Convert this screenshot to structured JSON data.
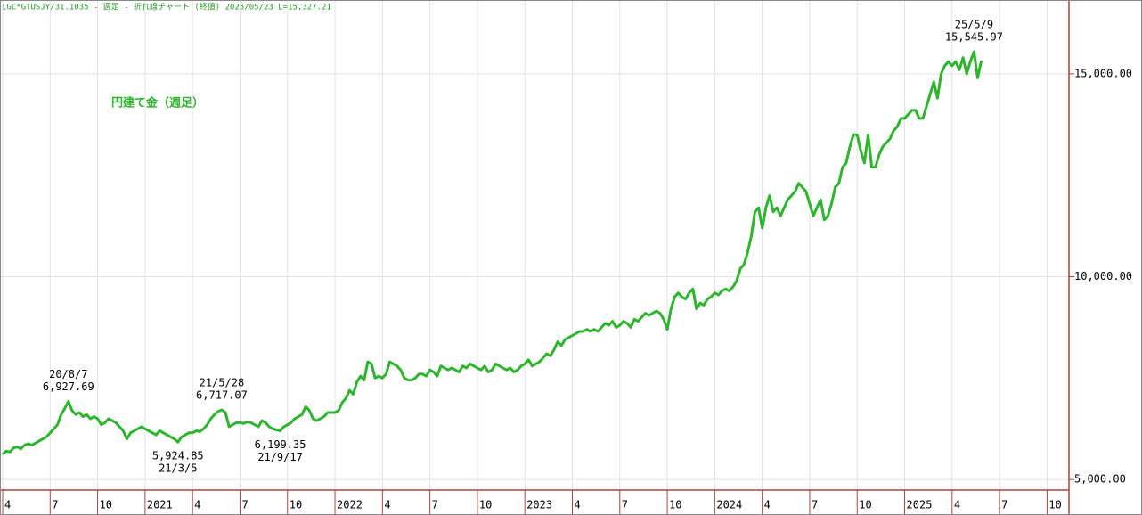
{
  "chart_data": {
    "type": "line",
    "header": "LGC*GTUSJY/31.1035 - 週足 - 折れ線チャート (終値)  2025/05/23 L=15,327.21",
    "title": "円建て金（週足）",
    "grid": true,
    "ylim": [
      4740,
      16820
    ],
    "yticks": [
      {
        "value": 5000,
        "label": "5,000.00"
      },
      {
        "value": 10000,
        "label": "10,000.00"
      },
      {
        "value": 15000,
        "label": "15,000.00"
      }
    ],
    "categories": [
      "4",
      null,
      null,
      null,
      null,
      null,
      null,
      null,
      null,
      null,
      null,
      null,
      null,
      "7",
      null,
      null,
      null,
      null,
      null,
      null,
      null,
      null,
      null,
      null,
      null,
      null,
      "10",
      null,
      null,
      null,
      null,
      null,
      null,
      null,
      null,
      null,
      null,
      null,
      null,
      "2021",
      null,
      null,
      null,
      null,
      null,
      null,
      null,
      null,
      null,
      null,
      null,
      null,
      "4",
      null,
      null,
      null,
      null,
      null,
      null,
      null,
      null,
      null,
      null,
      null,
      null,
      "7",
      null,
      null,
      null,
      null,
      null,
      null,
      null,
      null,
      null,
      null,
      null,
      null,
      "10",
      null,
      null,
      null,
      null,
      null,
      null,
      null,
      null,
      null,
      null,
      null,
      null,
      "2022",
      null,
      null,
      null,
      null,
      null,
      null,
      null,
      null,
      null,
      null,
      null,
      null,
      "4",
      null,
      null,
      null,
      null,
      null,
      null,
      null,
      null,
      null,
      null,
      null,
      null,
      "7",
      null,
      null,
      null,
      null,
      null,
      null,
      null,
      null,
      null,
      null,
      null,
      null,
      "10",
      null,
      null,
      null,
      null,
      null,
      null,
      null,
      null,
      null,
      null,
      null,
      null,
      "2023",
      null,
      null,
      null,
      null,
      null,
      null,
      null,
      null,
      null,
      null,
      null,
      null,
      "4",
      null,
      null,
      null,
      null,
      null,
      null,
      null,
      null,
      null,
      null,
      null,
      null,
      "7",
      null,
      null,
      null,
      null,
      null,
      null,
      null,
      null,
      null,
      null,
      null,
      null,
      "10",
      null,
      null,
      null,
      null,
      null,
      null,
      null,
      null,
      null,
      null,
      null,
      null,
      "2024",
      null,
      null,
      null,
      null,
      null,
      null,
      null,
      null,
      null,
      null,
      null,
      null,
      "4",
      null,
      null,
      null,
      null,
      null,
      null,
      null,
      null,
      null,
      null,
      null,
      null,
      "7",
      null,
      null,
      null,
      null,
      null,
      null,
      null,
      null,
      null,
      null,
      null,
      null,
      "10",
      null,
      null,
      null,
      null,
      null,
      null,
      null,
      null,
      null,
      null,
      null,
      null,
      "2025",
      null,
      null,
      null,
      null,
      null,
      null,
      null,
      null,
      null,
      null,
      null,
      null,
      "4",
      null,
      null,
      null,
      null,
      null,
      null,
      null,
      null,
      null,
      null,
      null,
      null,
      "7",
      null,
      null,
      null,
      null,
      null,
      null,
      null,
      null,
      null,
      null,
      null,
      null,
      "10",
      null,
      null,
      null,
      null,
      null
    ],
    "series": [
      {
        "name": "円建て金（週足）",
        "color": "#2db52d",
        "values": [
          5620,
          5700,
          5680,
          5780,
          5800,
          5760,
          5850,
          5880,
          5850,
          5900,
          5950,
          6000,
          6050,
          6150,
          6250,
          6350,
          6600,
          6750,
          6927.69,
          6700,
          6600,
          6650,
          6550,
          6600,
          6500,
          6550,
          6500,
          6350,
          6400,
          6500,
          6450,
          6400,
          6300,
          6200,
          6000,
          6150,
          6200,
          6250,
          6300,
          6250,
          6200,
          6150,
          6100,
          6200,
          6150,
          6100,
          6050,
          6000,
          5924.85,
          6050,
          6100,
          6150,
          6150,
          6200,
          6180,
          6250,
          6350,
          6500,
          6600,
          6680,
          6717.07,
          6650,
          6300,
          6350,
          6400,
          6400,
          6380,
          6420,
          6400,
          6350,
          6300,
          6450,
          6400,
          6300,
          6250,
          6220,
          6199.35,
          6300,
          6350,
          6400,
          6500,
          6550,
          6600,
          6800,
          6700,
          6500,
          6450,
          6500,
          6550,
          6650,
          6650,
          6650,
          6700,
          6900,
          7000,
          7200,
          7100,
          7400,
          7550,
          7450,
          7900,
          7850,
          7500,
          7550,
          7500,
          7600,
          7900,
          7850,
          7800,
          7700,
          7500,
          7450,
          7450,
          7500,
          7600,
          7600,
          7550,
          7700,
          7650,
          7550,
          7800,
          7750,
          7700,
          7750,
          7700,
          7650,
          7800,
          7750,
          7850,
          7800,
          7750,
          7700,
          7800,
          7650,
          7700,
          7850,
          7800,
          7750,
          7700,
          7750,
          7650,
          7700,
          7800,
          7850,
          7950,
          7800,
          7850,
          7900,
          8000,
          8100,
          8050,
          8200,
          8400,
          8300,
          8450,
          8500,
          8550,
          8600,
          8650,
          8650,
          8700,
          8650,
          8700,
          8650,
          8750,
          8850,
          8800,
          8900,
          8750,
          8800,
          8900,
          8850,
          8750,
          8950,
          8900,
          9000,
          9100,
          9050,
          9100,
          9150,
          9100,
          8950,
          8700,
          9200,
          9500,
          9600,
          9500,
          9450,
          9600,
          9700,
          9200,
          9350,
          9300,
          9450,
          9500,
          9600,
          9550,
          9650,
          9700,
          9650,
          9750,
          9900,
          10200,
          10300,
          10600,
          11000,
          11600,
          11700,
          11200,
          11700,
          12000,
          11600,
          11700,
          11500,
          11700,
          11900,
          12000,
          12100,
          12300,
          12200,
          12100,
          11800,
          11500,
          11700,
          11900,
          11400,
          11500,
          11800,
          12200,
          12300,
          12700,
          12800,
          13200,
          13500,
          13500,
          13100,
          12800,
          13500,
          12700,
          12700,
          13000,
          13200,
          13300,
          13400,
          13600,
          13700,
          13900,
          13900,
          14000,
          14100,
          14100,
          13900,
          13900,
          14200,
          14500,
          14800,
          14400,
          15000,
          15200,
          15300,
          15200,
          15300,
          15100,
          15400,
          15000,
          15300,
          15545.97,
          14900,
          15327.21,
          null,
          null,
          null,
          null,
          null,
          null,
          null,
          null,
          null,
          null,
          null,
          null,
          null,
          null,
          null,
          null,
          null,
          null,
          null,
          null,
          null,
          null,
          null
        ],
        "value_labels": [
          null,
          null,
          null,
          null,
          null,
          null,
          null,
          null,
          null,
          null,
          null,
          null,
          null,
          null,
          null,
          null,
          null,
          null,
          "6,927.69",
          null,
          null,
          null,
          null,
          null,
          null,
          null,
          null,
          null,
          null,
          null,
          null,
          null,
          null,
          null,
          null,
          null,
          null,
          null,
          null,
          null,
          null,
          null,
          null,
          null,
          null,
          null,
          null,
          null,
          "5,924.85",
          null,
          null,
          null,
          null,
          null,
          null,
          null,
          null,
          null,
          null,
          null,
          "6,717.07",
          null,
          null,
          null,
          null,
          null,
          null,
          null,
          null,
          null,
          null,
          null,
          null,
          null,
          null,
          null,
          "6,199.35",
          null,
          null,
          null,
          null,
          null,
          null,
          null,
          null,
          null,
          null,
          null,
          null,
          null,
          null,
          null,
          null,
          null,
          null,
          null,
          null,
          null,
          null,
          null,
          null,
          null,
          null,
          null,
          null,
          null,
          null,
          null,
          null,
          null,
          null,
          null,
          null,
          null,
          null,
          null,
          null,
          null,
          null,
          null,
          null,
          null,
          null,
          null,
          null,
          null,
          null,
          null,
          null,
          null,
          null,
          null,
          null,
          null,
          null,
          null,
          null,
          null,
          null,
          null,
          null,
          null,
          null,
          null,
          null,
          null,
          null,
          null,
          null,
          null,
          null,
          null,
          null,
          null,
          null,
          null,
          null,
          null,
          null,
          null,
          null,
          null,
          null,
          null,
          null,
          null,
          null,
          null,
          null,
          null,
          null,
          null,
          null,
          null,
          null,
          null,
          null,
          null,
          null,
          null,
          null,
          null,
          null,
          null,
          null,
          null,
          null,
          null,
          null,
          null,
          null,
          null,
          null,
          null,
          null,
          null,
          null,
          null,
          null,
          null,
          null,
          null,
          null,
          null,
          null,
          null,
          null,
          null,
          null,
          null,
          null,
          null,
          null,
          null,
          null,
          null,
          null,
          null,
          null,
          null,
          null,
          null,
          null,
          null,
          null,
          null,
          null,
          null,
          null,
          null,
          null,
          null,
          null,
          null,
          null,
          null,
          null,
          null,
          null,
          null,
          null,
          null,
          null,
          null,
          null,
          null,
          null,
          null,
          null,
          null,
          null,
          null,
          null,
          null,
          null,
          null,
          null,
          null,
          null,
          null,
          null,
          null,
          null,
          null,
          null,
          null,
          "15,545.97",
          null,
          null,
          null,
          null,
          null,
          null,
          null,
          null,
          null,
          null,
          null,
          null,
          null,
          null,
          null,
          null,
          null,
          null,
          null,
          null,
          null,
          null,
          null,
          null,
          null
        ],
        "date_labels": [
          null,
          null,
          null,
          null,
          null,
          null,
          null,
          null,
          null,
          null,
          null,
          null,
          null,
          null,
          null,
          null,
          null,
          null,
          "20/8/7",
          null,
          null,
          null,
          null,
          null,
          null,
          null,
          null,
          null,
          null,
          null,
          null,
          null,
          null,
          null,
          null,
          null,
          null,
          null,
          null,
          null,
          null,
          null,
          null,
          null,
          null,
          null,
          null,
          null,
          "21/3/5",
          null,
          null,
          null,
          null,
          null,
          null,
          null,
          null,
          null,
          null,
          null,
          "21/5/28",
          null,
          null,
          null,
          null,
          null,
          null,
          null,
          null,
          null,
          null,
          null,
          null,
          null,
          null,
          null,
          "21/9/17",
          null,
          null,
          null,
          null,
          null,
          null,
          null,
          null,
          null,
          null,
          null,
          null,
          null,
          null,
          null,
          null,
          null,
          null,
          null,
          null,
          null,
          null,
          null,
          null,
          null,
          null,
          null,
          null,
          null,
          null,
          null,
          null,
          null,
          null,
          null,
          null,
          null,
          null,
          null,
          null,
          null,
          null,
          null,
          null,
          null,
          null,
          null,
          null,
          null,
          null,
          null,
          null,
          null,
          null,
          null,
          null,
          null,
          null,
          null,
          null,
          null,
          null,
          null,
          null,
          null,
          null,
          null,
          null,
          null,
          null,
          null,
          null,
          null,
          null,
          null,
          null,
          null,
          null,
          null,
          null,
          null,
          null,
          null,
          null,
          null,
          null,
          null,
          null,
          null,
          null,
          null,
          null,
          null,
          null,
          null,
          null,
          null,
          null,
          null,
          null,
          null,
          null,
          null,
          null,
          null,
          null,
          null,
          null,
          null,
          null,
          null,
          null,
          null,
          null,
          null,
          null,
          null,
          null,
          null,
          null,
          null,
          null,
          null,
          null,
          null,
          null,
          null,
          null,
          null,
          null,
          null,
          null,
          null,
          null,
          null,
          null,
          null,
          null,
          null,
          null,
          null,
          null,
          null,
          null,
          null,
          null,
          null,
          null,
          null,
          null,
          null,
          null,
          null,
          null,
          null,
          null,
          null,
          null,
          null,
          null,
          null,
          null,
          null,
          null,
          null,
          null,
          null,
          null,
          null,
          null,
          null,
          null,
          null,
          null,
          null,
          null,
          null,
          null,
          null,
          null,
          null,
          null,
          null,
          null,
          null,
          null,
          null,
          null,
          null,
          "25/5/9",
          null,
          null,
          null,
          null,
          null,
          null,
          null,
          null,
          null,
          null,
          null,
          null,
          null,
          null,
          null,
          null,
          null,
          null,
          null,
          null,
          null,
          null,
          null,
          null,
          null
        ]
      }
    ]
  }
}
